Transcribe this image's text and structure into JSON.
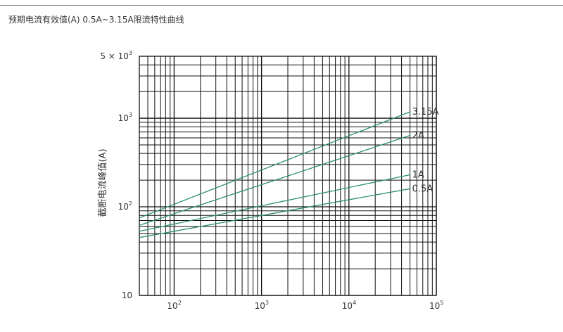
{
  "page": {
    "title": "预期电流有效值(A)  0.5A~3.15A限流特性曲线"
  },
  "colors": {
    "grid": "#111111",
    "curve": "#2a9070",
    "text": "#333333"
  },
  "chart_data": {
    "type": "line",
    "title": "",
    "xlabel": "",
    "ylabel": "截断电流峰值(A)",
    "x_scale": "log",
    "y_scale": "log",
    "xlim": [
      40,
      100000
    ],
    "ylim": [
      10,
      5000
    ],
    "x_ticks": [
      {
        "value": 100,
        "base": "10",
        "exp": "2"
      },
      {
        "value": 1000,
        "base": "10",
        "exp": "3"
      },
      {
        "value": 10000,
        "base": "10",
        "exp": "4"
      },
      {
        "value": 100000,
        "base": "10",
        "exp": "5"
      }
    ],
    "y_ticks": [
      {
        "value": 10,
        "base": "10",
        "exp": ""
      },
      {
        "value": 100,
        "base": "10",
        "exp": "2"
      },
      {
        "value": 1000,
        "base": "10",
        "exp": "3"
      },
      {
        "value": 5000,
        "base": "5 × 10",
        "exp": "3"
      }
    ],
    "grid": true,
    "series": [
      {
        "name": "3.15A",
        "x": [
          40,
          50000
        ],
        "y": [
          75,
          1180
        ]
      },
      {
        "name": "2A",
        "x": [
          40,
          50000
        ],
        "y": [
          62,
          640
        ]
      },
      {
        "name": "1A",
        "x": [
          40,
          50000
        ],
        "y": [
          53,
          230
        ]
      },
      {
        "name": "0.5A",
        "x": [
          40,
          50000
        ],
        "y": [
          45,
          160
        ]
      }
    ]
  }
}
